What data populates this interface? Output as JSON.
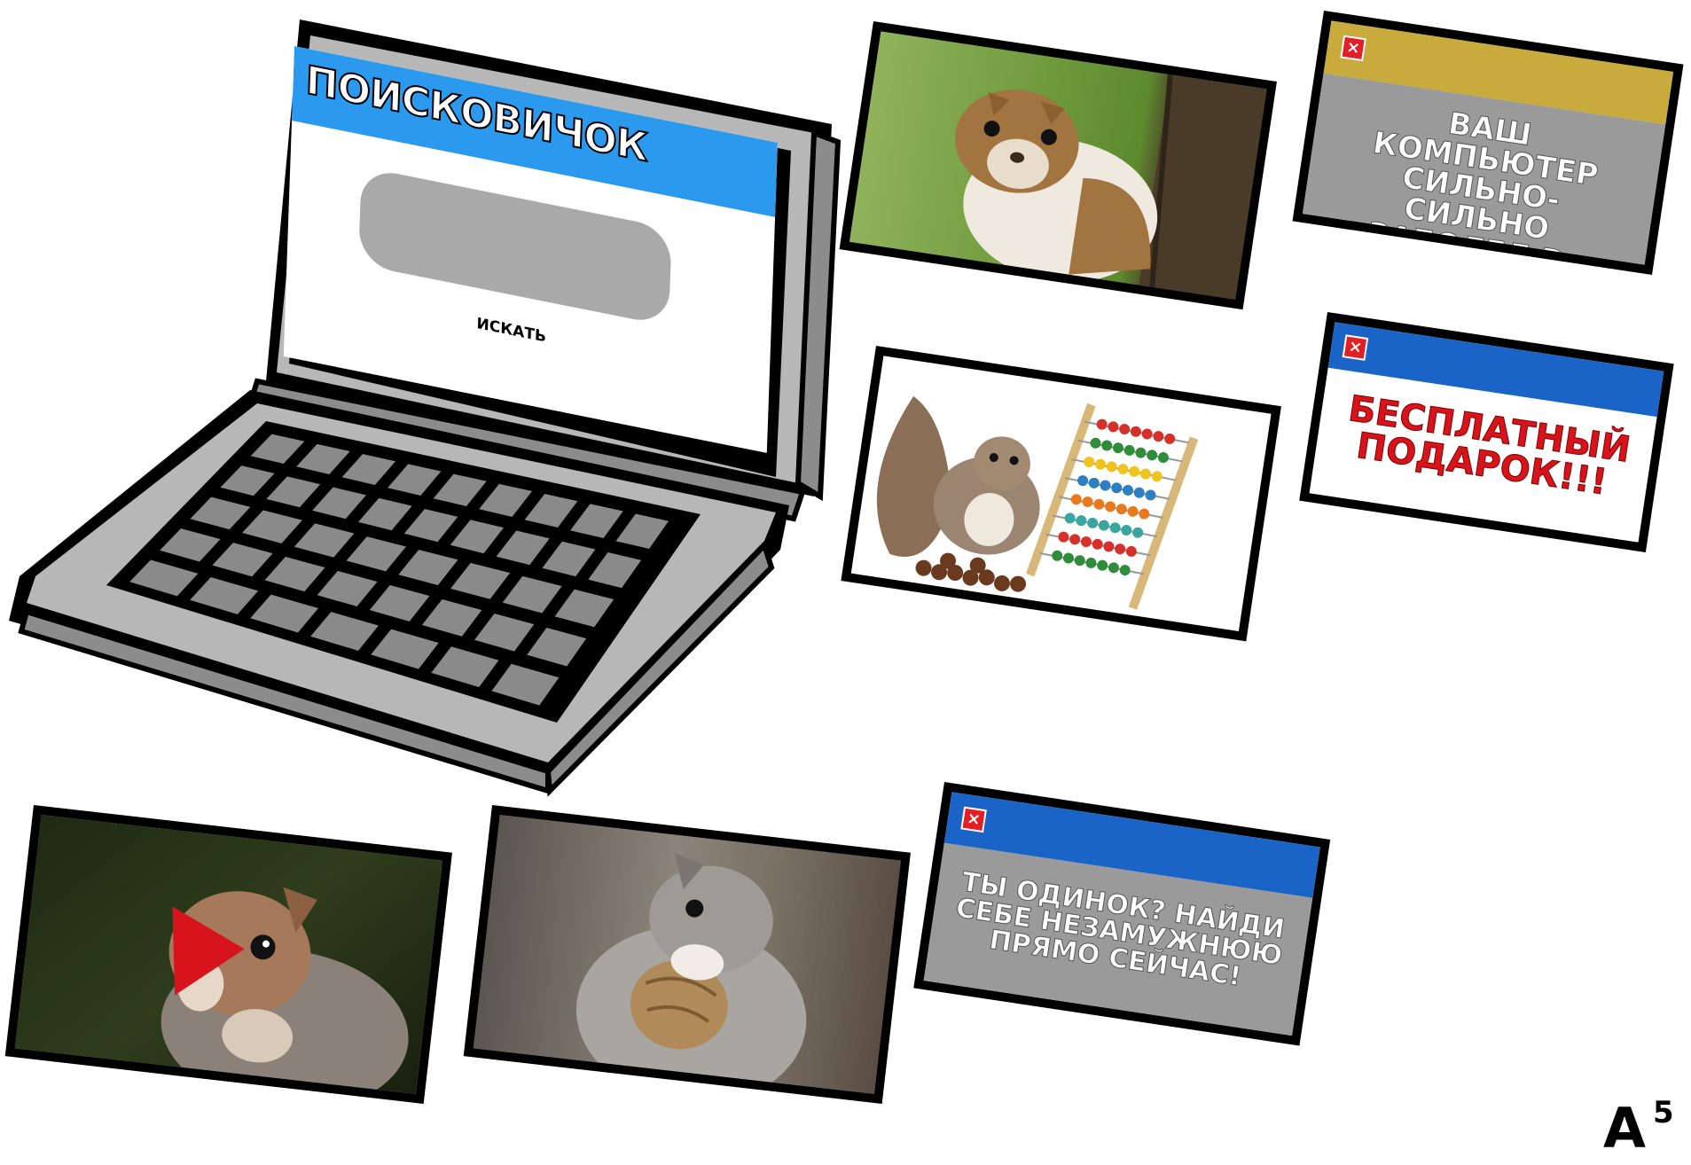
{
  "laptop": {
    "app_title": "ПОИСКОВИЧОК",
    "search_button": "ИСКАТЬ",
    "search_value": ""
  },
  "popups": [
    {
      "message": "ВАШ КОМПЬЮТЕР СИЛЬНО-СИЛЬНО ЗАБОЛЕЛ D:",
      "close": "×",
      "title_color": "#c9aa3c",
      "body_color": "#9a9a9a",
      "text_color": "#ffffff"
    },
    {
      "message": "БЕСПЛАТНЫЙ ПОДАРОК!!!",
      "close": "×",
      "title_color": "#1a64c8",
      "body_color": "#ffffff",
      "text_color": "#d7141c"
    },
    {
      "message": "ТЫ ОДИНОК? НАЙДИ СЕБЕ НЕЗАМУЖНЮЮ ПРЯМО СЕЙЧАС!",
      "close": "×",
      "title_color": "#1a64c8",
      "body_color": "#9a9a9a",
      "text_color": "#ffffff"
    }
  ],
  "photos": [
    {
      "subject": "squirrel-on-tree"
    },
    {
      "subject": "squirrel-with-abacus"
    },
    {
      "subject": "squirrel-video-with-play"
    },
    {
      "subject": "squirrel-with-walnut"
    }
  ],
  "page_marker": {
    "letter": "A",
    "number": "5"
  },
  "colors": {
    "laptop_body": "#b5b5b5",
    "laptop_screen_header": "#2a99ee",
    "search_field": "#a9a9a9",
    "play_triangle": "#d7141c"
  }
}
